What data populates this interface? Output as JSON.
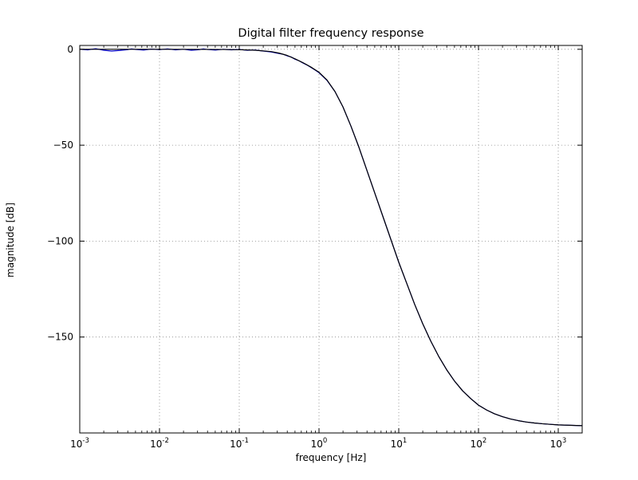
{
  "figure": {
    "title": "Digital filter frequency response",
    "xlabel": "frequency [Hz]",
    "ylabel": "magnitude [dB]"
  },
  "chart_data": {
    "type": "line",
    "title": "Digital filter frequency response",
    "xlabel": "frequency [Hz]",
    "ylabel": "magnitude [dB]",
    "x_scale": "log",
    "xlim_log10": [
      -3,
      3.3
    ],
    "ylim": [
      -200,
      2
    ],
    "grid": true,
    "x_tick_base": "10",
    "x_major_ticks_exp": [
      -3,
      -2,
      -1,
      0,
      1,
      2,
      3
    ],
    "x_major_tick_exp_labels": [
      "-3",
      "-2",
      "-1",
      "0",
      "1",
      "2",
      "3"
    ],
    "y_ticks": [
      0,
      -50,
      -100,
      -150
    ],
    "y_tick_labels": [
      "0",
      "−50",
      "−100",
      "−150"
    ],
    "colors": {
      "frame": "#000000",
      "grid": "#888888",
      "blue_series": "#0000cc",
      "black_series": "#000000"
    },
    "series": [
      {
        "name": "series-blue-noisy",
        "color": "#0000cc",
        "points_log10f_db": [
          [
            -3.0,
            0.0
          ],
          [
            -2.9,
            -0.3
          ],
          [
            -2.8,
            0.3
          ],
          [
            -2.7,
            -0.5
          ],
          [
            -2.6,
            -0.9
          ],
          [
            -2.5,
            -0.6
          ],
          [
            -2.4,
            -0.2
          ],
          [
            -2.35,
            0.2
          ],
          [
            -2.3,
            -0.1
          ],
          [
            -2.2,
            -0.4
          ],
          [
            -2.1,
            0.1
          ],
          [
            -2.0,
            -0.2
          ],
          [
            -1.9,
            0.2
          ],
          [
            -1.8,
            -0.3
          ],
          [
            -1.7,
            0.0
          ],
          [
            -1.6,
            -0.5
          ],
          [
            -1.5,
            -0.2
          ],
          [
            -1.45,
            0.2
          ],
          [
            -1.4,
            -0.1
          ],
          [
            -1.3,
            -0.4
          ],
          [
            -1.2,
            0.0
          ],
          [
            -1.1,
            -0.3
          ],
          [
            -1.0,
            -0.1
          ],
          [
            -0.9,
            -0.5
          ],
          [
            -0.8,
            -0.4
          ],
          [
            -0.7,
            -0.9
          ],
          [
            -0.6,
            -1.4
          ],
          [
            -0.5,
            -2.2
          ],
          [
            -0.45,
            -2.6
          ],
          [
            -0.4,
            -3.4
          ],
          [
            -0.35,
            -4.0
          ],
          [
            -0.3,
            -5.2
          ],
          [
            -0.25,
            -6.0
          ],
          [
            -0.2,
            -7.2
          ],
          [
            -0.15,
            -8.2
          ],
          [
            -0.1,
            -9.5
          ],
          [
            -0.05,
            -10.8
          ],
          [
            0.0,
            -12.2
          ],
          [
            0.1,
            -16.2
          ],
          [
            0.2,
            -22.0
          ],
          [
            0.3,
            -30.0
          ],
          [
            0.4,
            -40.0
          ],
          [
            0.5,
            -51.0
          ],
          [
            0.6,
            -63.0
          ],
          [
            0.7,
            -75.0
          ],
          [
            0.8,
            -87.0
          ],
          [
            0.9,
            -99.0
          ],
          [
            1.0,
            -111.0
          ],
          [
            1.1,
            -122.0
          ],
          [
            1.2,
            -133.0
          ],
          [
            1.3,
            -143.0
          ],
          [
            1.4,
            -152.0
          ],
          [
            1.5,
            -160.0
          ],
          [
            1.6,
            -167.0
          ],
          [
            1.7,
            -173.0
          ],
          [
            1.8,
            -178.0
          ],
          [
            1.9,
            -182.0
          ],
          [
            2.0,
            -185.5
          ],
          [
            2.1,
            -188.0
          ],
          [
            2.2,
            -190.0
          ],
          [
            2.3,
            -191.5
          ],
          [
            2.4,
            -192.7
          ],
          [
            2.5,
            -193.6
          ],
          [
            2.6,
            -194.3
          ],
          [
            2.7,
            -194.8
          ],
          [
            2.8,
            -195.2
          ],
          [
            2.9,
            -195.5
          ],
          [
            3.0,
            -195.8
          ],
          [
            3.15,
            -196.0
          ],
          [
            3.3,
            -196.2
          ]
        ]
      },
      {
        "name": "series-black-smooth",
        "color": "#000000",
        "points_log10f_db": [
          [
            -3.0,
            0.0
          ],
          [
            -2.5,
            0.0
          ],
          [
            -2.0,
            0.0
          ],
          [
            -1.5,
            -0.05
          ],
          [
            -1.2,
            -0.1
          ],
          [
            -1.0,
            -0.2
          ],
          [
            -0.8,
            -0.5
          ],
          [
            -0.6,
            -1.2
          ],
          [
            -0.5,
            -2.0
          ],
          [
            -0.4,
            -3.2
          ],
          [
            -0.3,
            -5.0
          ],
          [
            -0.2,
            -7.0
          ],
          [
            -0.1,
            -9.3
          ],
          [
            0.0,
            -12.0
          ],
          [
            0.1,
            -16.0
          ],
          [
            0.2,
            -22.0
          ],
          [
            0.3,
            -30.0
          ],
          [
            0.4,
            -40.0
          ],
          [
            0.5,
            -51.0
          ],
          [
            0.6,
            -63.0
          ],
          [
            0.7,
            -75.0
          ],
          [
            0.8,
            -87.0
          ],
          [
            0.9,
            -99.0
          ],
          [
            1.0,
            -111.0
          ],
          [
            1.1,
            -122.0
          ],
          [
            1.2,
            -133.0
          ],
          [
            1.3,
            -143.0
          ],
          [
            1.4,
            -152.0
          ],
          [
            1.5,
            -160.0
          ],
          [
            1.6,
            -167.0
          ],
          [
            1.7,
            -173.0
          ],
          [
            1.8,
            -178.0
          ],
          [
            1.9,
            -182.0
          ],
          [
            2.0,
            -185.5
          ],
          [
            2.1,
            -188.0
          ],
          [
            2.2,
            -190.0
          ],
          [
            2.3,
            -191.5
          ],
          [
            2.4,
            -192.7
          ],
          [
            2.5,
            -193.6
          ],
          [
            2.6,
            -194.3
          ],
          [
            2.7,
            -194.8
          ],
          [
            2.8,
            -195.2
          ],
          [
            2.9,
            -195.5
          ],
          [
            3.0,
            -195.8
          ],
          [
            3.15,
            -196.0
          ],
          [
            3.3,
            -196.2
          ]
        ]
      }
    ]
  }
}
